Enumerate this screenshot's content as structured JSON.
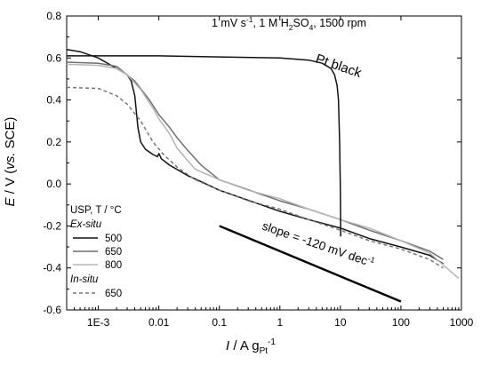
{
  "chart_data": {
    "type": "line",
    "x_scale": "log",
    "xlim": [
      0.0003,
      1000
    ],
    "ylim": [
      -0.6,
      0.8
    ],
    "x_ticks": [
      "1E-3",
      "0.01",
      "0.1",
      "1",
      "10",
      "100",
      "1000"
    ],
    "x_tick_values": [
      0.001,
      0.01,
      0.1,
      1,
      10,
      100,
      1000
    ],
    "y_ticks": [
      "-0.6",
      "-0.4",
      "-0.2",
      "0.0",
      "0.2",
      "0.4",
      "0.6",
      "0.8"
    ],
    "y_tick_values": [
      -0.6,
      -0.4,
      -0.2,
      0.0,
      0.2,
      0.4,
      0.6,
      0.8
    ],
    "xlabel": {
      "italic": "I",
      "unit": " / A g",
      "sub": "Pt",
      "sup": "-1"
    },
    "ylabel": {
      "italic": "E",
      "unit": " / V (",
      "italic2": "vs.",
      "unit2": " SCE)"
    },
    "conditions": {
      "prefix": "1 mV s",
      "sup": "-1",
      "mid": ", 1 M H",
      "sub1": "2",
      "mid2": "SO",
      "sub2": "4",
      "suffix": ", 1500 rpm"
    },
    "annotations": {
      "pt_black": "Pt black",
      "slope": {
        "text": "slope = -120 mV dec",
        "sup": "-1"
      }
    },
    "slope_line": {
      "x": [
        0.1,
        100
      ],
      "y": [
        -0.2,
        -0.56
      ]
    },
    "legend": {
      "title": "USP, T / °C",
      "group1": "Ex-situ",
      "group2": "In-situ",
      "placement": "lower-left"
    },
    "series": [
      {
        "name": "500",
        "group": "Ex-situ",
        "color": "#111111",
        "dash": "solid",
        "x": [
          0.0003,
          0.0005,
          0.001,
          0.002,
          0.003,
          0.0035,
          0.004,
          0.0045,
          0.005,
          0.006,
          0.008,
          0.0095,
          0.01,
          0.011,
          0.015,
          0.03,
          0.06,
          0.1,
          0.2,
          0.5,
          1,
          3,
          10,
          30,
          100,
          300,
          500
        ],
        "y": [
          0.64,
          0.63,
          0.6,
          0.55,
          0.52,
          0.49,
          0.42,
          0.27,
          0.2,
          0.165,
          0.14,
          0.13,
          0.145,
          0.12,
          0.09,
          0.04,
          0.0,
          -0.03,
          -0.06,
          -0.1,
          -0.13,
          -0.17,
          -0.21,
          -0.26,
          -0.3,
          -0.34,
          -0.38
        ]
      },
      {
        "name": "650",
        "group": "Ex-situ",
        "color": "#6f6f6f",
        "dash": "solid",
        "x": [
          0.0003,
          0.001,
          0.002,
          0.004,
          0.007,
          0.01,
          0.015,
          0.02,
          0.03,
          0.05,
          0.1,
          0.2,
          0.5,
          1,
          3,
          10,
          30,
          100,
          300,
          500
        ],
        "y": [
          0.58,
          0.575,
          0.56,
          0.49,
          0.4,
          0.33,
          0.27,
          0.22,
          0.16,
          0.09,
          0.02,
          -0.01,
          -0.05,
          -0.08,
          -0.12,
          -0.17,
          -0.22,
          -0.27,
          -0.32,
          -0.36
        ]
      },
      {
        "name": "800",
        "group": "Ex-situ",
        "color": "#b5b5b5",
        "dash": "solid",
        "x": [
          0.0003,
          0.001,
          0.002,
          0.003,
          0.005,
          0.008,
          0.01,
          0.015,
          0.02,
          0.04,
          0.1,
          0.3,
          1,
          3,
          10,
          30,
          100,
          300,
          900
        ],
        "y": [
          0.57,
          0.565,
          0.55,
          0.52,
          0.45,
          0.36,
          0.31,
          0.24,
          0.17,
          0.07,
          0.02,
          -0.03,
          -0.07,
          -0.12,
          -0.17,
          -0.21,
          -0.27,
          -0.33,
          -0.45
        ]
      },
      {
        "name": "650",
        "group": "In-situ",
        "color": "#777777",
        "dash": "dashed",
        "x": [
          0.0003,
          0.001,
          0.002,
          0.003,
          0.005,
          0.008,
          0.012,
          0.02,
          0.04,
          0.1,
          0.3,
          1,
          3,
          10,
          30,
          100,
          300,
          500
        ],
        "y": [
          0.46,
          0.455,
          0.42,
          0.38,
          0.3,
          0.2,
          0.14,
          0.08,
          0.02,
          -0.03,
          -0.08,
          -0.12,
          -0.17,
          -0.22,
          -0.27,
          -0.31,
          -0.36,
          -0.4
        ]
      },
      {
        "name": "Pt black",
        "group": "",
        "color": "#111111",
        "dash": "solid",
        "x": [
          0.0003,
          0.01,
          0.1,
          1,
          3,
          5,
          7,
          8,
          8.8,
          9.3,
          9.7,
          10.0,
          10.1
        ],
        "y": [
          0.61,
          0.61,
          0.605,
          0.6,
          0.59,
          0.575,
          0.55,
          0.52,
          0.47,
          0.4,
          0.2,
          -0.05,
          -0.25
        ]
      }
    ]
  }
}
